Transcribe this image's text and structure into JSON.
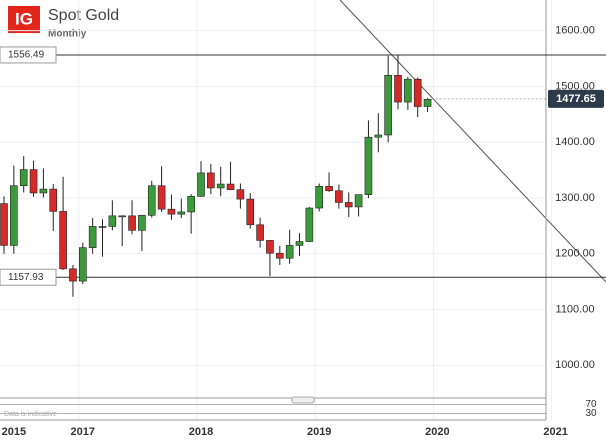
{
  "logo": "IG",
  "chart_data": {
    "type": "candlestick",
    "title": "Spot Gold",
    "subtitle": "Monthly",
    "categories": [
      null,
      null,
      null,
      null,
      null,
      null,
      null,
      null,
      null,
      null,
      null,
      null,
      null,
      null,
      null,
      null,
      null,
      null,
      null,
      null,
      null,
      null,
      null,
      null,
      null,
      null,
      null,
      null,
      null,
      null,
      null,
      null,
      null,
      null,
      null,
      null,
      null,
      null,
      null,
      null,
      null,
      null,
      null,
      null
    ],
    "open": [
      1290,
      1215,
      1322,
      1351,
      1309,
      1316,
      1276,
      1173,
      1151,
      1211,
      1249,
      1249,
      1268,
      1268,
      1242,
      1269,
      1322,
      1280,
      1271,
      1275,
      1303,
      1345,
      1318,
      1325,
      1315,
      1298,
      1252,
      1224,
      1201,
      1192,
      1215,
      1222,
      1282,
      1321,
      1313,
      1292,
      1284,
      1306,
      1409,
      1413,
      1520,
      1472,
      1513,
      1464
    ],
    "high": [
      1303,
      1358,
      1375,
      1367,
      1353,
      1325,
      1338,
      1180,
      1220,
      1264,
      1262,
      1296,
      1269,
      1296,
      1270,
      1331,
      1357,
      1306,
      1299,
      1307,
      1366,
      1361,
      1356,
      1365,
      1326,
      1309,
      1265,
      1219,
      1214,
      1243,
      1237,
      1284,
      1326,
      1346,
      1324,
      1310,
      1306,
      1439,
      1452,
      1555,
      1557,
      1517,
      1516,
      1479
    ],
    "low": [
      1200,
      1200,
      1310,
      1302,
      1301,
      1241,
      1171,
      1123,
      1146,
      1200,
      1195,
      1242,
      1214,
      1235,
      1205,
      1265,
      1275,
      1261,
      1264,
      1236,
      1302,
      1307,
      1303,
      1314,
      1281,
      1245,
      1211,
      1160,
      1180,
      1182,
      1196,
      1221,
      1276,
      1311,
      1281,
      1266,
      1267,
      1300,
      1382,
      1400,
      1459,
      1458,
      1445,
      1454
    ],
    "close": [
      1215,
      1322,
      1351,
      1309,
      1316,
      1276,
      1173,
      1151,
      1211,
      1249,
      1249,
      1268,
      1268,
      1242,
      1269,
      1322,
      1280,
      1271,
      1275,
      1303,
      1345,
      1318,
      1325,
      1315,
      1298,
      1252,
      1224,
      1201,
      1192,
      1215,
      1222,
      1282,
      1321,
      1313,
      1292,
      1284,
      1306,
      1409,
      1413,
      1520,
      1472,
      1513,
      1464,
      1477
    ],
    "up_color": "#3c9a3c",
    "down_color": "#d42a2a",
    "ylim": [
      945,
      1655
    ],
    "yticks": [
      {
        "value": 1000,
        "label": "1000.00"
      },
      {
        "value": 1100,
        "label": "1100.00"
      },
      {
        "value": 1200,
        "label": "1200.00"
      },
      {
        "value": 1300,
        "label": "1300.00"
      },
      {
        "value": 1400,
        "label": "1400.00"
      },
      {
        "value": 1500,
        "label": "1500.00"
      },
      {
        "value": 1600,
        "label": "1600.00"
      }
    ],
    "xticks": [
      {
        "value": 1,
        "label": "2015"
      },
      {
        "value": 8,
        "label": "2017"
      },
      {
        "value": 20,
        "label": "2018"
      },
      {
        "value": 32,
        "label": "2019"
      },
      {
        "value": 44,
        "label": "2020"
      },
      {
        "value": 56,
        "label": "2021"
      }
    ],
    "levels": [
      1556.49,
      1157.93
    ],
    "last_price": 1477.65,
    "indicator": {
      "ylim": [
        0,
        100
      ],
      "yticks": [
        70,
        30
      ],
      "note": "Data is indicative"
    },
    "grid": true
  }
}
